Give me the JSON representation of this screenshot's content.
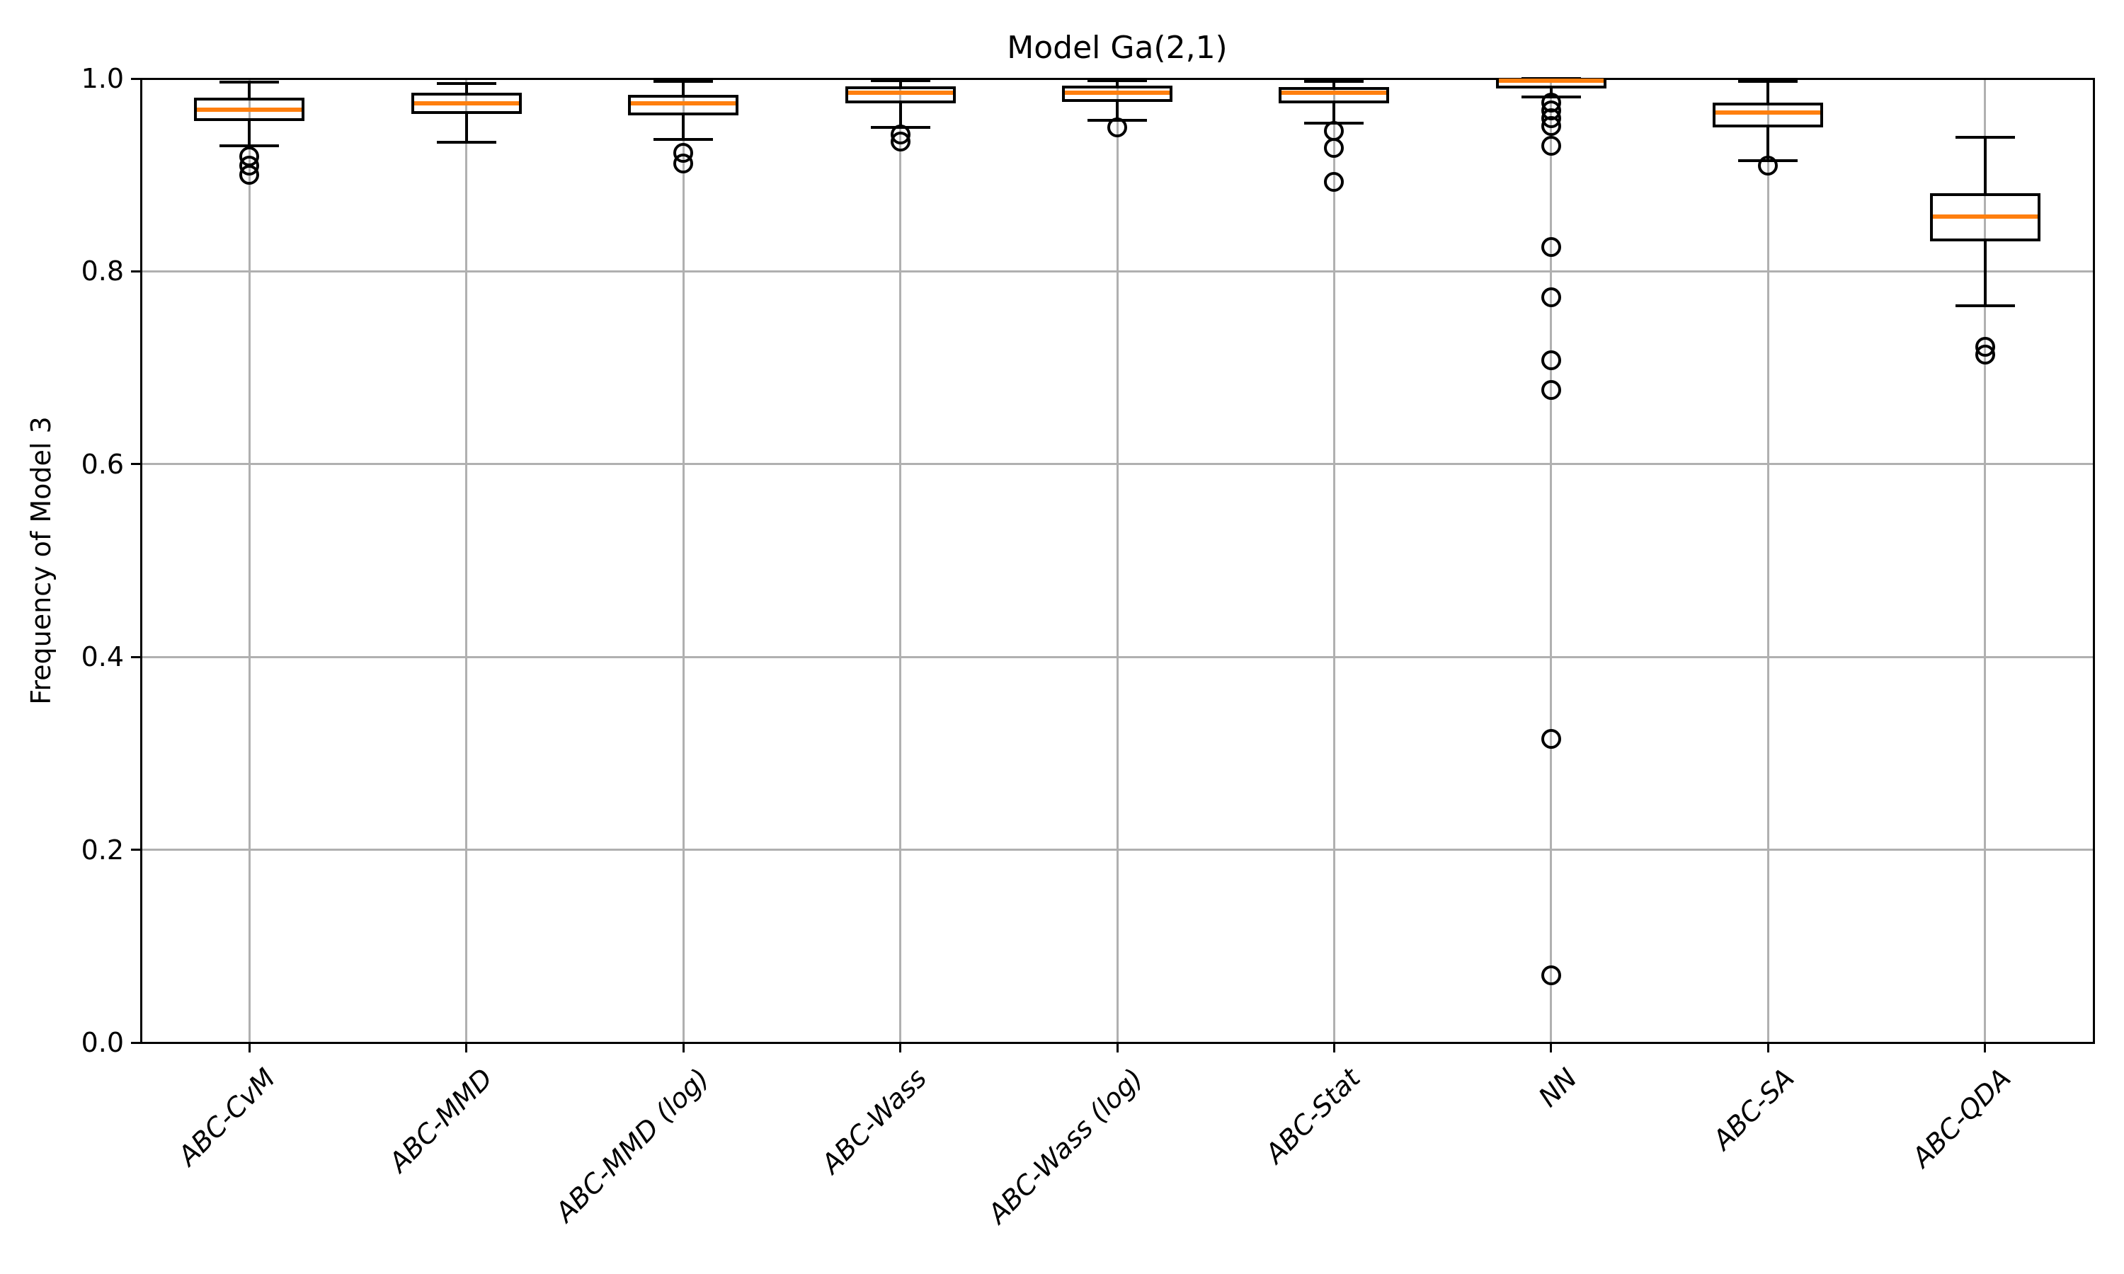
{
  "chart_data": {
    "type": "box",
    "title": "Model Ga(2,1)",
    "xlabel": "",
    "ylabel": "Frequency of Model 3",
    "ylim": [
      0.0,
      1.0
    ],
    "yticks": [
      {
        "value": 0.0,
        "label": "0.0"
      },
      {
        "value": 0.2,
        "label": "0.2"
      },
      {
        "value": 0.4,
        "label": "0.4"
      },
      {
        "value": 0.6,
        "label": "0.6"
      },
      {
        "value": 0.8,
        "label": "0.8"
      },
      {
        "value": 1.0,
        "label": "1.0"
      }
    ],
    "grid": true,
    "legend": "none",
    "categories": [
      "ABC-CvM",
      "ABC-MMD",
      "ABC-MMD (log)",
      "ABC-Wass",
      "ABC-Wass (log)",
      "ABC-Stat",
      "NN",
      "ABC-SA",
      "ABC-QDA"
    ],
    "boxes": [
      {
        "label": "ABC-CvM",
        "whisker_low": 0.93,
        "q1": 0.956,
        "median": 0.968,
        "q3": 0.98,
        "whisker_high": 0.996,
        "outliers": [
          0.919,
          0.91,
          0.9
        ]
      },
      {
        "label": "ABC-MMD",
        "whisker_low": 0.934,
        "q1": 0.963,
        "median": 0.974,
        "q3": 0.985,
        "whisker_high": 0.995,
        "outliers": []
      },
      {
        "label": "ABC-MMD (log)",
        "whisker_low": 0.937,
        "q1": 0.962,
        "median": 0.974,
        "q3": 0.983,
        "whisker_high": 0.997,
        "outliers": [
          0.923,
          0.912
        ]
      },
      {
        "label": "ABC-Wass",
        "whisker_low": 0.949,
        "q1": 0.974,
        "median": 0.985,
        "q3": 0.992,
        "whisker_high": 0.998,
        "outliers": [
          0.942,
          0.935
        ]
      },
      {
        "label": "ABC-Wass (log)",
        "whisker_low": 0.957,
        "q1": 0.976,
        "median": 0.985,
        "q3": 0.993,
        "whisker_high": 0.998,
        "outliers": [
          0.949
        ]
      },
      {
        "label": "ABC-Stat",
        "whisker_low": 0.954,
        "q1": 0.974,
        "median": 0.985,
        "q3": 0.991,
        "whisker_high": 0.997,
        "outliers": [
          0.946,
          0.928,
          0.893
        ]
      },
      {
        "label": "NN",
        "whisker_low": 0.981,
        "q1": 0.99,
        "median": 0.998,
        "q3": 1.0,
        "whisker_high": 1.0,
        "outliers": [
          0.975,
          0.967,
          0.959,
          0.951,
          0.93,
          0.825,
          0.773,
          0.708,
          0.677,
          0.315,
          0.07
        ]
      },
      {
        "label": "ABC-SA",
        "whisker_low": 0.915,
        "q1": 0.949,
        "median": 0.965,
        "q3": 0.975,
        "whisker_high": 0.997,
        "outliers": [
          0.91
        ]
      },
      {
        "label": "ABC-QDA",
        "whisker_low": 0.764,
        "q1": 0.831,
        "median": 0.857,
        "q3": 0.881,
        "whisker_high": 0.939,
        "outliers": [
          0.722,
          0.714
        ]
      }
    ],
    "colors": {
      "median": "#ff7f0e",
      "box_edge": "#000000",
      "grid": "#b0b0b0",
      "background": "#ffffff"
    }
  }
}
